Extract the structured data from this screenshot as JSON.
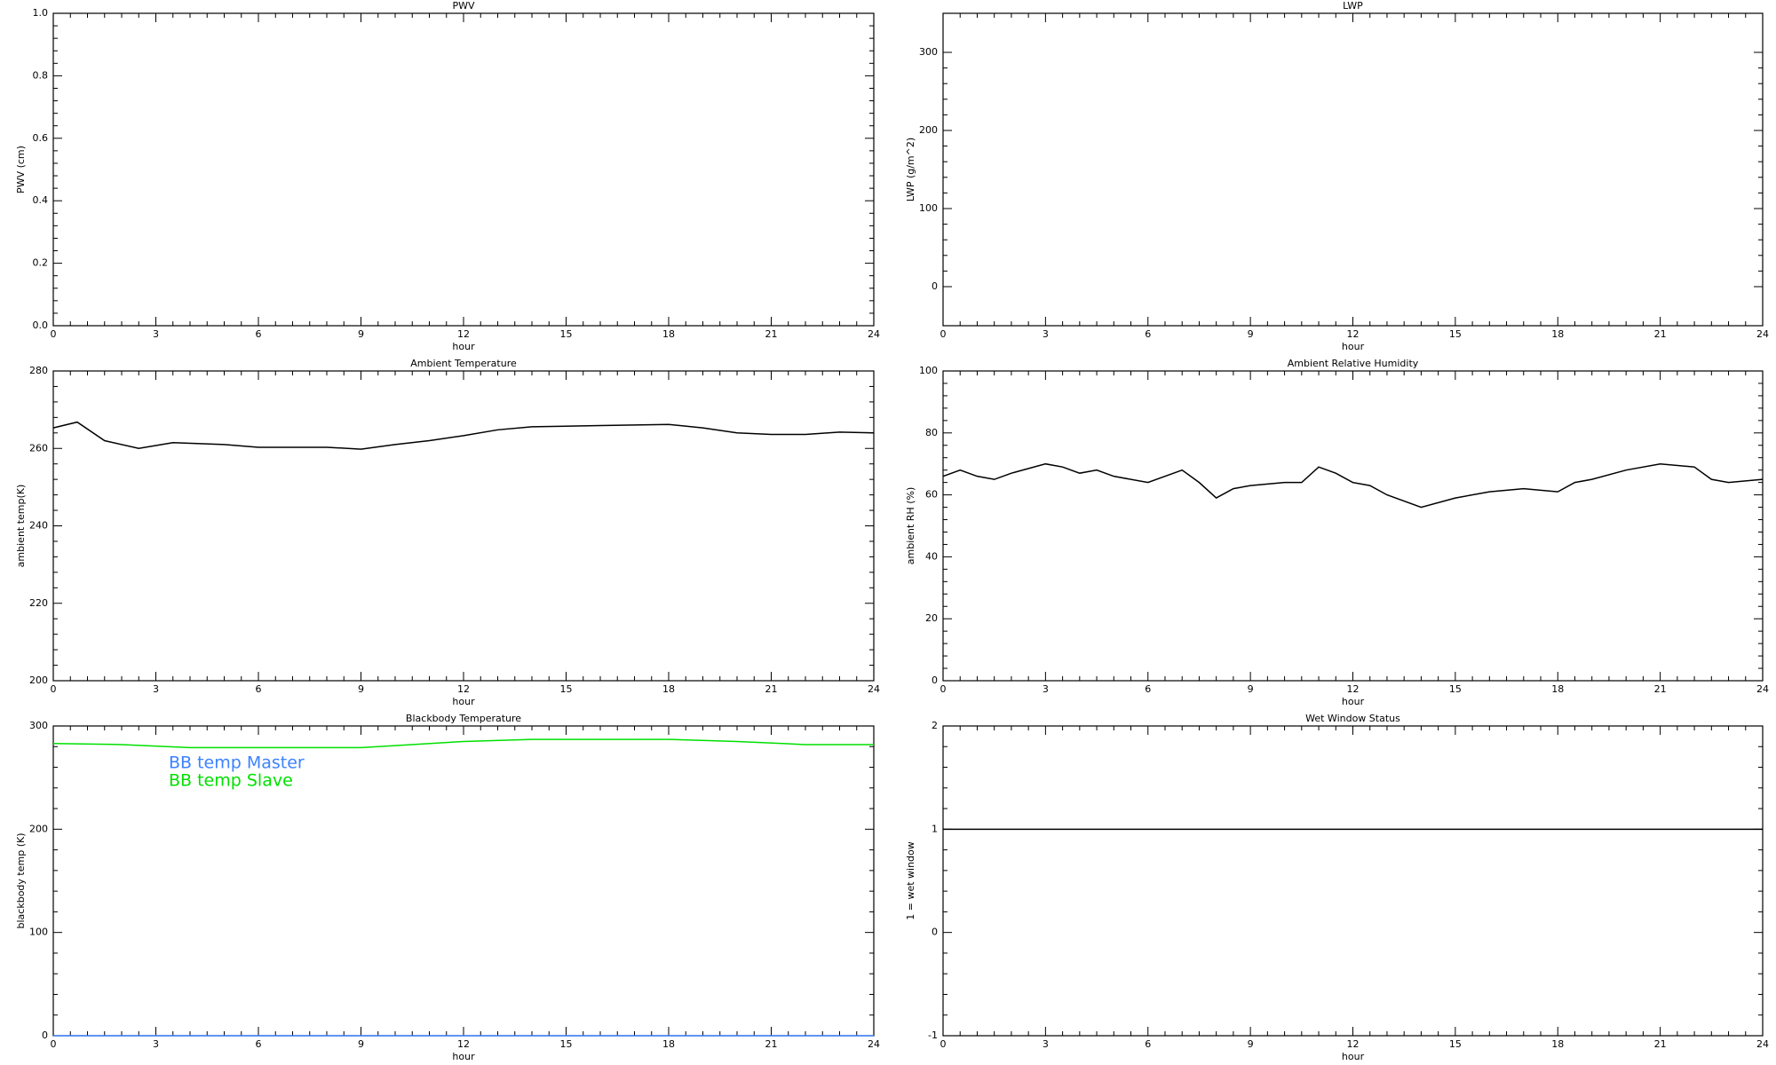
{
  "chart_data": [
    {
      "type": "line",
      "title": "PWV",
      "xlabel": "hour",
      "ylabel": "PWV (cm)",
      "xlim": [
        0,
        24
      ],
      "xticks": [
        0,
        3,
        6,
        9,
        12,
        15,
        18,
        21,
        24
      ],
      "ylim": [
        0,
        1
      ],
      "yticks": [
        {
          "value": 0,
          "label": "0.0"
        },
        0.2,
        0.4,
        0.6,
        0.8,
        {
          "value": 1,
          "label": "1.0"
        }
      ],
      "x": [],
      "series": []
    },
    {
      "type": "line",
      "title": "LWP",
      "xlabel": "hour",
      "ylabel": "LWP (g/m^2)",
      "xlim": [
        0,
        24
      ],
      "xticks": [
        0,
        3,
        6,
        9,
        12,
        15,
        18,
        21,
        24
      ],
      "ylim": [
        -50,
        350
      ],
      "yticks": [
        0,
        100,
        200,
        300
      ],
      "x": [],
      "series": []
    },
    {
      "type": "line",
      "title": "Ambient Temperature",
      "xlabel": "hour",
      "ylabel": "ambient temp(K)",
      "xlim": [
        0,
        24
      ],
      "xticks": [
        0,
        3,
        6,
        9,
        12,
        15,
        18,
        21,
        24
      ],
      "ylim": [
        200,
        280
      ],
      "yticks": [
        200,
        220,
        240,
        260,
        280
      ],
      "x": [
        0,
        0.7,
        1.5,
        2.5,
        3.5,
        5,
        6,
        8,
        9,
        10,
        11,
        12,
        13,
        14,
        16,
        18,
        19,
        20,
        21,
        22,
        23,
        24
      ],
      "series": [
        {
          "color": "#000000",
          "values": [
            265.3,
            266.8,
            262,
            260,
            261.5,
            261,
            260.3,
            260.3,
            259.8,
            261,
            262,
            263.3,
            264.8,
            265.6,
            265.9,
            266.2,
            265.3,
            264,
            263.6,
            263.6,
            264.2,
            264
          ]
        }
      ]
    },
    {
      "type": "line",
      "title": "Ambient Relative Humidity",
      "xlabel": "hour",
      "ylabel": "ambient RH (%)",
      "xlim": [
        0,
        24
      ],
      "xticks": [
        0,
        3,
        6,
        9,
        12,
        15,
        18,
        21,
        24
      ],
      "ylim": [
        0,
        100
      ],
      "yticks": [
        0,
        20,
        40,
        60,
        80,
        100
      ],
      "x": [
        0,
        0.5,
        1,
        1.5,
        2,
        3,
        3.5,
        4,
        4.5,
        5,
        6,
        7,
        7.5,
        8,
        8.5,
        9,
        10,
        10.5,
        11,
        11.5,
        12,
        12.5,
        13,
        14,
        15,
        16,
        17,
        18,
        18.5,
        19,
        20,
        21,
        22,
        22.5,
        23,
        24
      ],
      "series": [
        {
          "color": "#000000",
          "values": [
            66,
            68,
            66,
            65,
            67,
            70,
            69,
            67,
            68,
            66,
            64,
            68,
            64,
            59,
            62,
            63,
            64,
            64,
            69,
            67,
            64,
            63,
            60,
            56,
            59,
            61,
            62,
            61,
            64,
            65,
            68,
            70,
            69,
            65,
            64,
            65
          ]
        }
      ]
    },
    {
      "type": "line",
      "title": "Blackbody Temperature",
      "xlabel": "hour",
      "ylabel": "blackbody temp (K)",
      "xlim": [
        0,
        24
      ],
      "xticks": [
        0,
        3,
        6,
        9,
        12,
        15,
        18,
        21,
        24
      ],
      "ylim": [
        0,
        300
      ],
      "yticks": [
        0,
        100,
        200,
        300
      ],
      "legend": "upper left",
      "x": [
        0,
        2,
        4,
        6,
        8,
        9,
        10,
        12,
        14,
        16,
        18,
        20,
        22,
        24
      ],
      "series": [
        {
          "name": "BB temp Master",
          "color": "#3c82ff",
          "values": [
            0,
            0,
            0,
            0,
            0,
            0,
            0,
            0,
            0,
            0,
            0,
            0,
            0,
            0
          ]
        },
        {
          "name": "BB temp Slave",
          "color": "#00e000",
          "values": [
            283,
            282,
            279,
            279,
            279,
            279,
            281,
            285,
            287,
            287,
            287,
            285,
            282,
            282
          ]
        }
      ]
    },
    {
      "type": "line",
      "title": "Wet Window Status",
      "xlabel": "hour",
      "ylabel": "1 = wet window",
      "xlim": [
        0,
        24
      ],
      "xticks": [
        0,
        3,
        6,
        9,
        12,
        15,
        18,
        21,
        24
      ],
      "ylim": [
        -1,
        2
      ],
      "yticks": [
        -1,
        0,
        1,
        2
      ],
      "x": [
        0,
        24
      ],
      "series": [
        {
          "color": "#000000",
          "values": [
            1,
            1
          ]
        }
      ]
    }
  ]
}
